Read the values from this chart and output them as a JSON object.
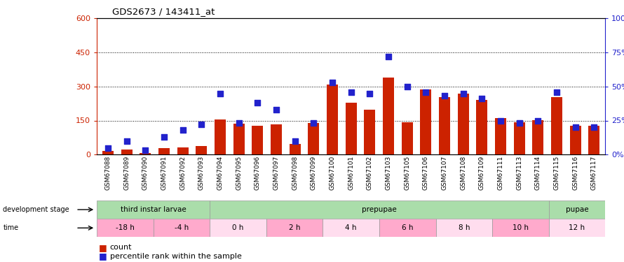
{
  "title": "GDS2673 / 143411_at",
  "samples": [
    "GSM67088",
    "GSM67089",
    "GSM67090",
    "GSM67091",
    "GSM67092",
    "GSM67093",
    "GSM67094",
    "GSM67095",
    "GSM67096",
    "GSM67097",
    "GSM67098",
    "GSM67099",
    "GSM67100",
    "GSM67101",
    "GSM67102",
    "GSM67103",
    "GSM67105",
    "GSM67106",
    "GSM67107",
    "GSM67108",
    "GSM67109",
    "GSM67111",
    "GSM67113",
    "GSM67114",
    "GSM67115",
    "GSM67116",
    "GSM67117"
  ],
  "counts": [
    15,
    22,
    8,
    28,
    32,
    38,
    155,
    135,
    128,
    132,
    48,
    138,
    308,
    228,
    198,
    338,
    142,
    288,
    252,
    268,
    242,
    162,
    142,
    152,
    252,
    128,
    128
  ],
  "percentiles": [
    5,
    10,
    3,
    13,
    18,
    22,
    45,
    23,
    38,
    33,
    10,
    23,
    53,
    46,
    45,
    72,
    50,
    46,
    43,
    45,
    41,
    25,
    23,
    25,
    46,
    20,
    20
  ],
  "ylim_left": [
    0,
    600
  ],
  "ylim_right": [
    0,
    100
  ],
  "yticks_left": [
    0,
    150,
    300,
    450,
    600
  ],
  "yticks_right": [
    0,
    25,
    50,
    75,
    100
  ],
  "bar_color": "#cc2200",
  "dot_color": "#2222cc",
  "dev_stages": [
    {
      "label": "third instar larvae",
      "start": 0,
      "end": 6,
      "color": "#aaddaa"
    },
    {
      "label": "prepupae",
      "start": 6,
      "end": 24,
      "color": "#aaddaa"
    },
    {
      "label": "pupae",
      "start": 24,
      "end": 27,
      "color": "#aaddaa"
    }
  ],
  "time_groups": [
    {
      "label": "-18 h",
      "start": 0,
      "end": 3,
      "color": "#ffaacc"
    },
    {
      "label": "-4 h",
      "start": 3,
      "end": 6,
      "color": "#ffaacc"
    },
    {
      "label": "0 h",
      "start": 6,
      "end": 9,
      "color": "#ffddee"
    },
    {
      "label": "2 h",
      "start": 9,
      "end": 12,
      "color": "#ffaacc"
    },
    {
      "label": "4 h",
      "start": 12,
      "end": 15,
      "color": "#ffddee"
    },
    {
      "label": "6 h",
      "start": 15,
      "end": 18,
      "color": "#ffaacc"
    },
    {
      "label": "8 h",
      "start": 18,
      "end": 21,
      "color": "#ffddee"
    },
    {
      "label": "10 h",
      "start": 21,
      "end": 24,
      "color": "#ffaacc"
    },
    {
      "label": "12 h",
      "start": 24,
      "end": 27,
      "color": "#ffddee"
    }
  ],
  "left_axis_color": "#cc2200",
  "right_axis_color": "#2222cc"
}
